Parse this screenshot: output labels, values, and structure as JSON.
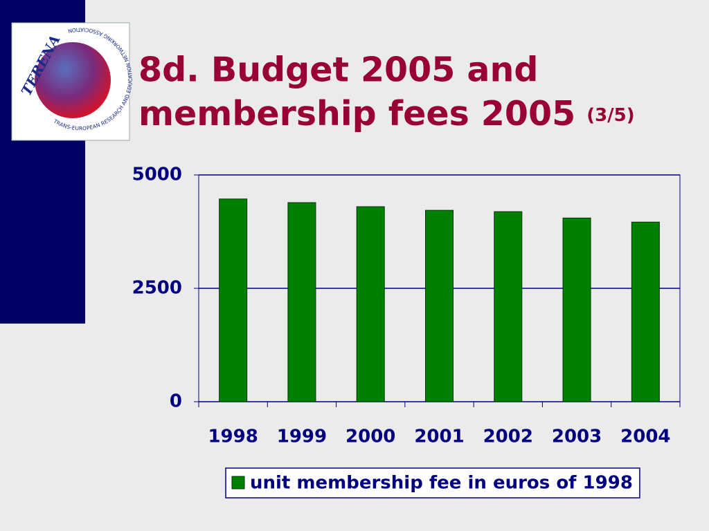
{
  "logo": {
    "name": "TERENA",
    "full_name": "TRANS-EUROPEAN RESEARCH AND EDUCATION NETWORKING ASSOCIATION"
  },
  "chart_data": {
    "type": "bar",
    "title": "8d. Budget 2005 and membership fees 2005",
    "title_note": "(3/5)",
    "categories": [
      "1998",
      "1999",
      "2000",
      "2001",
      "2002",
      "2003",
      "2004"
    ],
    "series": [
      {
        "name": "unit membership fee in euros of 1998",
        "color": "#008000",
        "values": [
          4470,
          4390,
          4300,
          4220,
          4190,
          4050,
          3960
        ]
      }
    ],
    "ylim": [
      0,
      5000
    ],
    "yticks": [
      0,
      2500,
      5000
    ],
    "grid": true,
    "legend": "bottom"
  }
}
